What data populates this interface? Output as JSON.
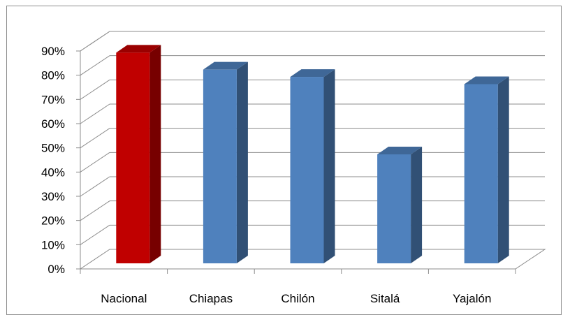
{
  "chart_data": {
    "type": "bar",
    "categories": [
      "Nacional",
      "Chiapas",
      "Chilón",
      "Sitalá",
      "Yajalón"
    ],
    "values": [
      87,
      80,
      77,
      45,
      74
    ],
    "bar_colors": [
      "#c00000",
      "#4f81bd",
      "#4f81bd",
      "#4f81bd",
      "#4f81bd"
    ],
    "y_ticks": [
      "0%",
      "10%",
      "20%",
      "30%",
      "40%",
      "50%",
      "60%",
      "70%",
      "80%",
      "90%"
    ],
    "ylim": [
      0,
      90
    ],
    "grid": true,
    "legend": "none",
    "style": "3d-column"
  }
}
